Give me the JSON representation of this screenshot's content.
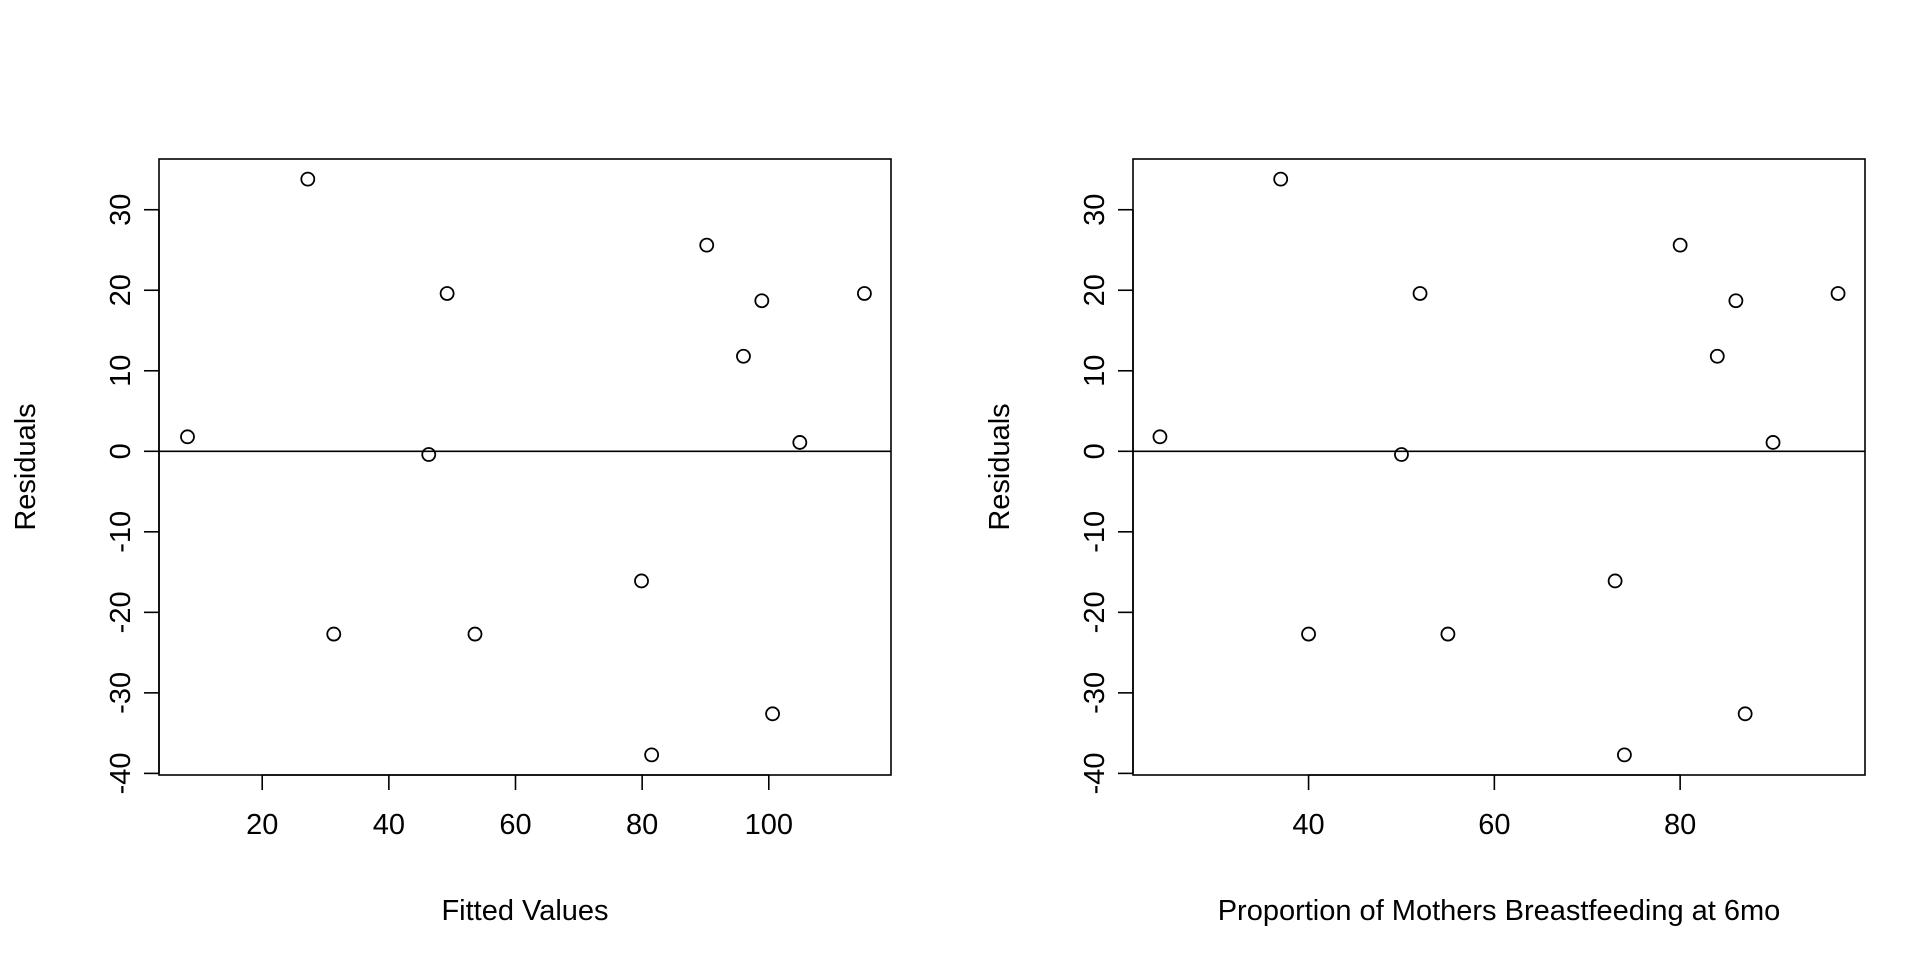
{
  "chart_data": [
    {
      "type": "scatter",
      "title": "",
      "xlabel": "Fitted Values",
      "ylabel": "Residuals",
      "xlim": [
        3.7,
        119.3
      ],
      "ylim": [
        -40.2,
        36.3
      ],
      "x_ticks": [
        20,
        40,
        60,
        80,
        100
      ],
      "y_ticks": [
        -40,
        -30,
        -20,
        -10,
        0,
        10,
        20,
        30
      ],
      "grid": false,
      "reference_line": {
        "y": 0
      },
      "points": [
        {
          "x": 8.2,
          "y": 1.8
        },
        {
          "x": 27.2,
          "y": 33.8
        },
        {
          "x": 31.3,
          "y": -22.7
        },
        {
          "x": 46.3,
          "y": -0.4
        },
        {
          "x": 49.2,
          "y": 19.6
        },
        {
          "x": 53.6,
          "y": -22.7
        },
        {
          "x": 79.9,
          "y": -16.1
        },
        {
          "x": 81.5,
          "y": -37.7
        },
        {
          "x": 90.2,
          "y": 25.6
        },
        {
          "x": 96.0,
          "y": 11.8
        },
        {
          "x": 98.9,
          "y": 18.7
        },
        {
          "x": 100.6,
          "y": -32.6
        },
        {
          "x": 104.9,
          "y": 1.1
        },
        {
          "x": 115.1,
          "y": 19.6
        }
      ]
    },
    {
      "type": "scatter",
      "title": "",
      "xlabel": "Proportion of Mothers Breastfeeding at 6mo",
      "ylabel": "Residuals",
      "xlim": [
        21.1,
        99.9
      ],
      "ylim": [
        -40.2,
        36.3
      ],
      "x_ticks": [
        40,
        60,
        80
      ],
      "y_ticks": [
        -40,
        -30,
        -20,
        -10,
        0,
        10,
        20,
        30
      ],
      "grid": false,
      "reference_line": {
        "y": 0
      },
      "points": [
        {
          "x": 24.0,
          "y": 1.8
        },
        {
          "x": 37.0,
          "y": 33.8
        },
        {
          "x": 40.0,
          "y": -22.7
        },
        {
          "x": 50.0,
          "y": -0.4
        },
        {
          "x": 52.0,
          "y": 19.6
        },
        {
          "x": 55.0,
          "y": -22.7
        },
        {
          "x": 73.0,
          "y": -16.1
        },
        {
          "x": 74.0,
          "y": -37.7
        },
        {
          "x": 80.0,
          "y": 25.6
        },
        {
          "x": 84.0,
          "y": 11.8
        },
        {
          "x": 86.0,
          "y": 18.7
        },
        {
          "x": 87.0,
          "y": -32.6
        },
        {
          "x": 90.0,
          "y": 1.1
        },
        {
          "x": 97.0,
          "y": 19.6
        }
      ]
    }
  ]
}
